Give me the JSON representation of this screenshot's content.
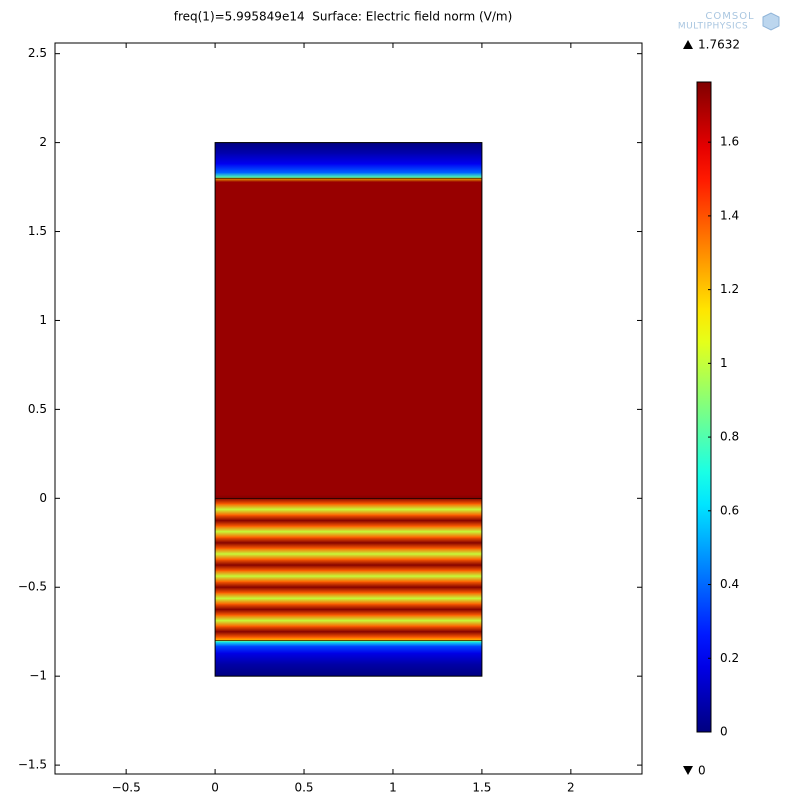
{
  "chart_data": {
    "type": "surface",
    "title": "freq(1)=5.995849e14  Surface: Electric field norm (V/m)",
    "logo": [
      "COMSOL",
      "MULTIPHYSICS"
    ],
    "colormap": "jet",
    "xlim": [
      -0.9,
      2.4
    ],
    "ylim": [
      -1.55,
      2.56
    ],
    "xticks": [
      {
        "value": -0.5,
        "label": "−0.5"
      },
      0,
      0.5,
      1,
      1.5,
      2
    ],
    "yticks": [
      {
        "value": -1.5,
        "label": "−1.5"
      },
      {
        "value": -1,
        "label": "−1"
      },
      {
        "value": -0.5,
        "label": "−0.5"
      },
      0,
      0.5,
      1,
      1.5,
      2,
      2.5
    ],
    "domain": {
      "x": [
        0,
        1.5
      ],
      "y": [
        -1,
        2
      ]
    },
    "interfaces": [
      -0.8,
      0,
      1.8
    ],
    "profile": {
      "y": [
        -1,
        -0.93,
        -0.87,
        -0.83,
        -0.805,
        -0.8,
        -0.78125,
        -0.75,
        -0.71875,
        -0.6875,
        -0.65625,
        -0.625,
        -0.59375,
        -0.5625,
        -0.53125,
        -0.5,
        -0.46875,
        -0.4375,
        -0.40625,
        -0.375,
        -0.34375,
        -0.3125,
        -0.28125,
        -0.25,
        -0.21875,
        -0.1875,
        -0.15625,
        -0.125,
        -0.09375,
        -0.0625,
        -0.03125,
        0,
        0.02,
        1.78,
        1.8,
        1.805,
        1.83,
        1.88,
        1.94,
        2
      ],
      "values": [
        0,
        0.07,
        0.18,
        0.35,
        0.7,
        1.2,
        1.38,
        1.76,
        1.38,
        1.0,
        1.38,
        1.76,
        1.38,
        1.0,
        1.38,
        1.76,
        1.38,
        1.0,
        1.38,
        1.76,
        1.38,
        1.0,
        1.38,
        1.76,
        1.38,
        1.0,
        1.38,
        1.76,
        1.38,
        1.0,
        1.38,
        1.76,
        1.72,
        1.72,
        1.2,
        0.8,
        0.4,
        0.2,
        0.08,
        0
      ]
    },
    "clim": [
      0,
      1.7632
    ],
    "colorbar_ticks": [
      0,
      0.2,
      0.4,
      0.6,
      0.8,
      1,
      1.2,
      1.4,
      1.6
    ]
  }
}
